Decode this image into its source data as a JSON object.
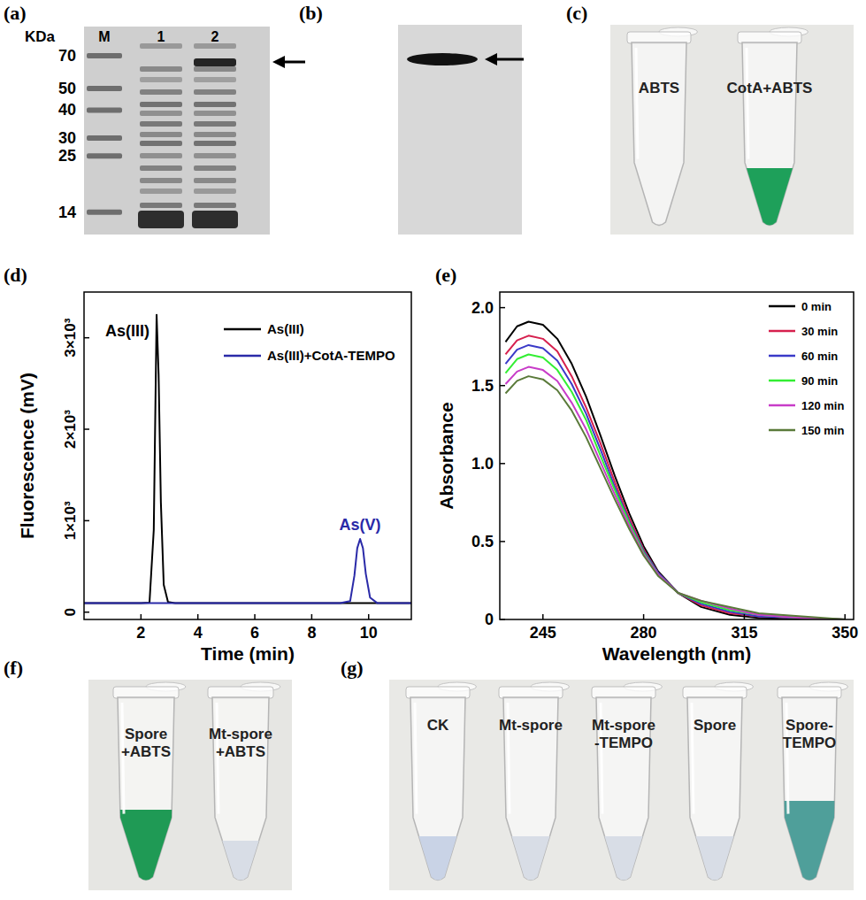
{
  "panels": {
    "a": {
      "label": "(a)",
      "unit": "KDa",
      "lanes": [
        "M",
        "1",
        "2"
      ],
      "markers": [
        70,
        50,
        40,
        30,
        25,
        14
      ]
    },
    "b": {
      "label": "(b)"
    },
    "c": {
      "label": "(c)",
      "tubes": [
        [
          "ABTS"
        ],
        [
          "CotA+ABTS"
        ]
      ]
    },
    "d": {
      "label": "(d)"
    },
    "e": {
      "label": "(e)"
    },
    "f": {
      "label": "(f)",
      "tubes": [
        [
          "Spore",
          "+ABTS"
        ],
        [
          "Mt-spore",
          "+ABTS"
        ]
      ]
    },
    "g": {
      "label": "(g)",
      "tubes": [
        [
          "CK"
        ],
        [
          "Mt-spore"
        ],
        [
          "Mt-spore",
          "-TEMPO"
        ],
        [
          "Spore"
        ],
        [
          "Spore-",
          "TEMPO"
        ]
      ]
    }
  },
  "chart_data": [
    {
      "type": "line",
      "x_label": "Time (min)",
      "y_label": "Fluorescence (mV)",
      "xlim": [
        0,
        11.5
      ],
      "xticks": [
        2,
        4,
        6,
        8,
        10
      ],
      "ylim": [
        -80,
        3500
      ],
      "yticks": [
        0,
        {
          "value": 1000,
          "label": "1×10³"
        },
        {
          "value": 2000,
          "label": "2×10³"
        },
        {
          "value": 3000,
          "label": "3×10³"
        }
      ],
      "legend": "upper right",
      "annotations": [
        "As(III)",
        "As(V)"
      ],
      "series": [
        {
          "name": "As(III)",
          "color": "#000000",
          "x": [
            0,
            1,
            2,
            2.3,
            2.45,
            2.55,
            2.62,
            2.7,
            2.8,
            2.95,
            3.2,
            4,
            6,
            8,
            10,
            11.5
          ],
          "values": [
            100,
            100,
            100,
            105,
            900,
            3250,
            2600,
            1200,
            300,
            110,
            100,
            100,
            100,
            100,
            100,
            100
          ]
        },
        {
          "name": "As(III)+CotA-TEMPO",
          "color": "#2a2aa8",
          "x": [
            0,
            2,
            4,
            6,
            8,
            9,
            9.35,
            9.5,
            9.6,
            9.7,
            9.8,
            9.9,
            10.05,
            10.3,
            11,
            11.5
          ],
          "values": [
            100,
            100,
            100,
            100,
            100,
            100,
            120,
            400,
            700,
            800,
            700,
            420,
            160,
            100,
            100,
            100
          ]
        }
      ]
    },
    {
      "type": "line",
      "x_label": "Wavelength (nm)",
      "y_label": "Absorbance",
      "xlim": [
        230,
        353
      ],
      "xticks": [
        245,
        280,
        315,
        350
      ],
      "ylim": [
        0,
        2.1
      ],
      "yticks": [
        0,
        0.5,
        {
          "value": 1,
          "label": "1.0"
        },
        1.5,
        {
          "value": 2,
          "label": "2.0"
        }
      ],
      "legend": "upper right",
      "x": [
        232,
        236,
        240,
        245,
        250,
        255,
        260,
        265,
        270,
        275,
        280,
        285,
        292,
        300,
        310,
        320,
        335,
        350
      ],
      "series": [
        {
          "name": "0 min",
          "color": "#000000",
          "values": [
            1.78,
            1.88,
            1.91,
            1.89,
            1.8,
            1.64,
            1.43,
            1.18,
            0.92,
            0.68,
            0.47,
            0.31,
            0.17,
            0.08,
            0.03,
            0.01,
            0,
            0
          ]
        },
        {
          "name": "30 min",
          "color": "#d6204e",
          "values": [
            1.7,
            1.79,
            1.82,
            1.8,
            1.72,
            1.56,
            1.36,
            1.13,
            0.88,
            0.65,
            0.45,
            0.3,
            0.17,
            0.09,
            0.04,
            0.02,
            0.01,
            0
          ]
        },
        {
          "name": "60 min",
          "color": "#3a3ac8",
          "values": [
            1.64,
            1.73,
            1.76,
            1.74,
            1.66,
            1.51,
            1.32,
            1.09,
            0.85,
            0.63,
            0.44,
            0.3,
            0.17,
            0.1,
            0.05,
            0.02,
            0.01,
            0
          ]
        },
        {
          "name": "90 min",
          "color": "#33ee33",
          "values": [
            1.58,
            1.67,
            1.7,
            1.68,
            1.6,
            1.46,
            1.28,
            1.05,
            0.83,
            0.62,
            0.43,
            0.29,
            0.17,
            0.11,
            0.06,
            0.03,
            0.01,
            0
          ]
        },
        {
          "name": "120 min",
          "color": "#c83cc8",
          "values": [
            1.51,
            1.59,
            1.62,
            1.6,
            1.53,
            1.39,
            1.22,
            1.01,
            0.8,
            0.6,
            0.42,
            0.29,
            0.17,
            0.12,
            0.07,
            0.03,
            0.01,
            0
          ]
        },
        {
          "name": "150 min",
          "color": "#5a7a3a",
          "values": [
            1.45,
            1.53,
            1.56,
            1.54,
            1.47,
            1.34,
            1.17,
            0.97,
            0.77,
            0.58,
            0.41,
            0.28,
            0.17,
            0.12,
            0.08,
            0.04,
            0.02,
            0
          ]
        }
      ]
    }
  ]
}
